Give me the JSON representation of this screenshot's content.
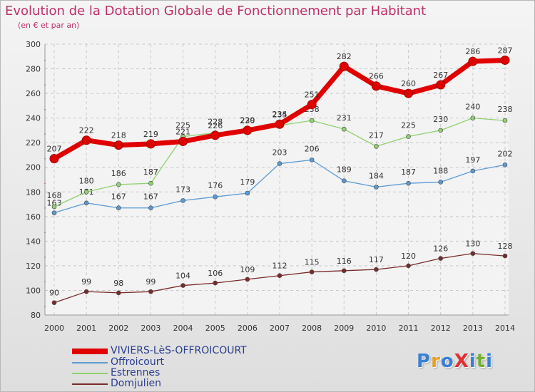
{
  "header": {
    "title": "Evolution de la Dotation Globale de Fonctionnement par Habitant",
    "subtitle": "(en € et par an)"
  },
  "brand": {
    "text": "ProXiti",
    "colors": [
      "#3a7fd5",
      "#e8a020",
      "#3a7fd5",
      "#e03030",
      "#3a7fd5",
      "#70b030",
      "#3a7fd5"
    ]
  },
  "chart_data": {
    "type": "line",
    "x": [
      2000,
      2001,
      2002,
      2003,
      2004,
      2005,
      2006,
      2007,
      2008,
      2009,
      2010,
      2011,
      2012,
      2013,
      2014
    ],
    "ylim": [
      80,
      300
    ],
    "yticks": [
      80,
      100,
      120,
      140,
      160,
      180,
      200,
      220,
      240,
      260,
      280,
      300
    ],
    "grid": true,
    "legend_position": "bottom-left",
    "series": [
      {
        "name": "VIVIERS-LèS-OFFROICOURT",
        "color": "#e00000",
        "values": [
          207,
          222,
          218,
          219,
          221,
          226,
          230,
          235,
          251,
          282,
          266,
          260,
          267,
          286,
          287
        ]
      },
      {
        "name": "Offroicourt",
        "color": "#5b9bd5",
        "values": [
          163,
          171,
          167,
          167,
          173,
          176,
          179,
          203,
          206,
          189,
          184,
          187,
          188,
          197,
          202
        ]
      },
      {
        "name": "Estrennes",
        "color": "#8fd16f",
        "values": [
          168,
          180,
          186,
          187,
          225,
          228,
          229,
          234,
          238,
          231,
          217,
          225,
          230,
          240,
          238
        ]
      },
      {
        "name": "Domjulien",
        "color": "#7a2a2a",
        "values": [
          90,
          99,
          98,
          99,
          104,
          106,
          109,
          112,
          115,
          116,
          117,
          120,
          126,
          130,
          128
        ]
      }
    ]
  }
}
